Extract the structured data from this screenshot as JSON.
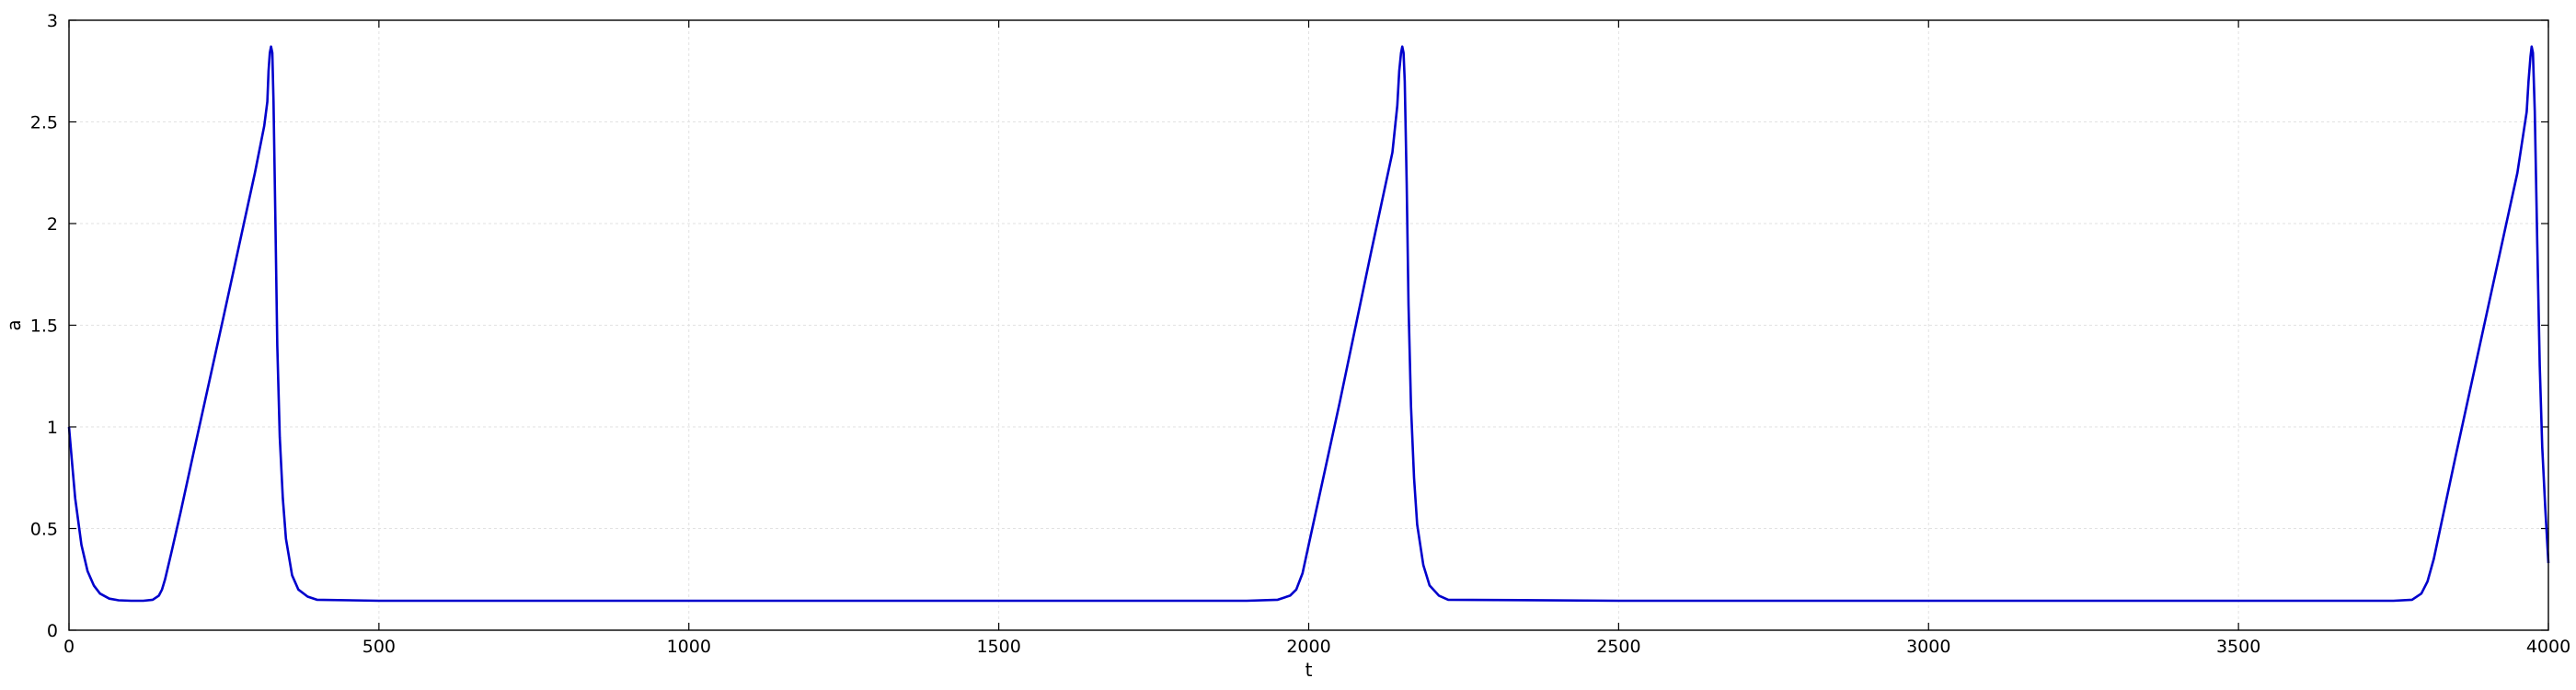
{
  "chart_data": {
    "type": "line",
    "title": "",
    "xlabel": "t",
    "ylabel": "a",
    "xlim": [
      0,
      4000
    ],
    "ylim": [
      0,
      3
    ],
    "xticks": [
      0,
      500,
      1000,
      1500,
      2000,
      2500,
      3000,
      3500,
      4000
    ],
    "yticks": [
      0,
      0.5,
      1,
      1.5,
      2,
      2.5,
      3
    ],
    "xtick_labels": [
      "0",
      "500",
      "1000",
      "1500",
      "2000",
      "2500",
      "3000",
      "3500",
      "4000"
    ],
    "ytick_labels": [
      "0",
      "0.5",
      "1",
      "1.5",
      "2",
      "2.5",
      "3"
    ],
    "grid": true,
    "series": [
      {
        "color": "#0000cc",
        "x": [
          0,
          5,
          10,
          20,
          30,
          40,
          50,
          65,
          80,
          100,
          120,
          135,
          145,
          150,
          155,
          165,
          180,
          200,
          250,
          300,
          315,
          320,
          322,
          324,
          326,
          328,
          330,
          333,
          336,
          340,
          345,
          350,
          360,
          370,
          385,
          400,
          500,
          1000,
          1500,
          1900,
          1950,
          1970,
          1980,
          1990,
          2000,
          2050,
          2100,
          2135,
          2143,
          2146,
          2149,
          2151,
          2153,
          2155,
          2158,
          2161,
          2165,
          2170,
          2175,
          2185,
          2195,
          2210,
          2225,
          2500,
          3000,
          3500,
          3750,
          3780,
          3795,
          3805,
          3815,
          3850,
          3900,
          3950,
          3965,
          3968,
          3971,
          3973,
          3975,
          3978,
          3982,
          3986,
          3990,
          3995,
          4000
        ],
        "y": [
          1.0,
          0.82,
          0.65,
          0.42,
          0.29,
          0.22,
          0.18,
          0.155,
          0.147,
          0.145,
          0.145,
          0.15,
          0.17,
          0.2,
          0.25,
          0.38,
          0.58,
          0.86,
          1.55,
          2.25,
          2.48,
          2.6,
          2.75,
          2.84,
          2.87,
          2.84,
          2.6,
          2.0,
          1.4,
          0.95,
          0.65,
          0.45,
          0.27,
          0.2,
          0.165,
          0.15,
          0.145,
          0.145,
          0.145,
          0.145,
          0.15,
          0.17,
          0.2,
          0.28,
          0.42,
          1.12,
          1.85,
          2.35,
          2.58,
          2.75,
          2.84,
          2.87,
          2.84,
          2.7,
          2.2,
          1.6,
          1.1,
          0.75,
          0.52,
          0.32,
          0.22,
          0.17,
          0.15,
          0.145,
          0.145,
          0.145,
          0.145,
          0.15,
          0.18,
          0.24,
          0.35,
          0.85,
          1.55,
          2.25,
          2.55,
          2.7,
          2.82,
          2.87,
          2.84,
          2.55,
          1.9,
          1.3,
          0.9,
          0.6,
          0.33
        ]
      }
    ]
  }
}
